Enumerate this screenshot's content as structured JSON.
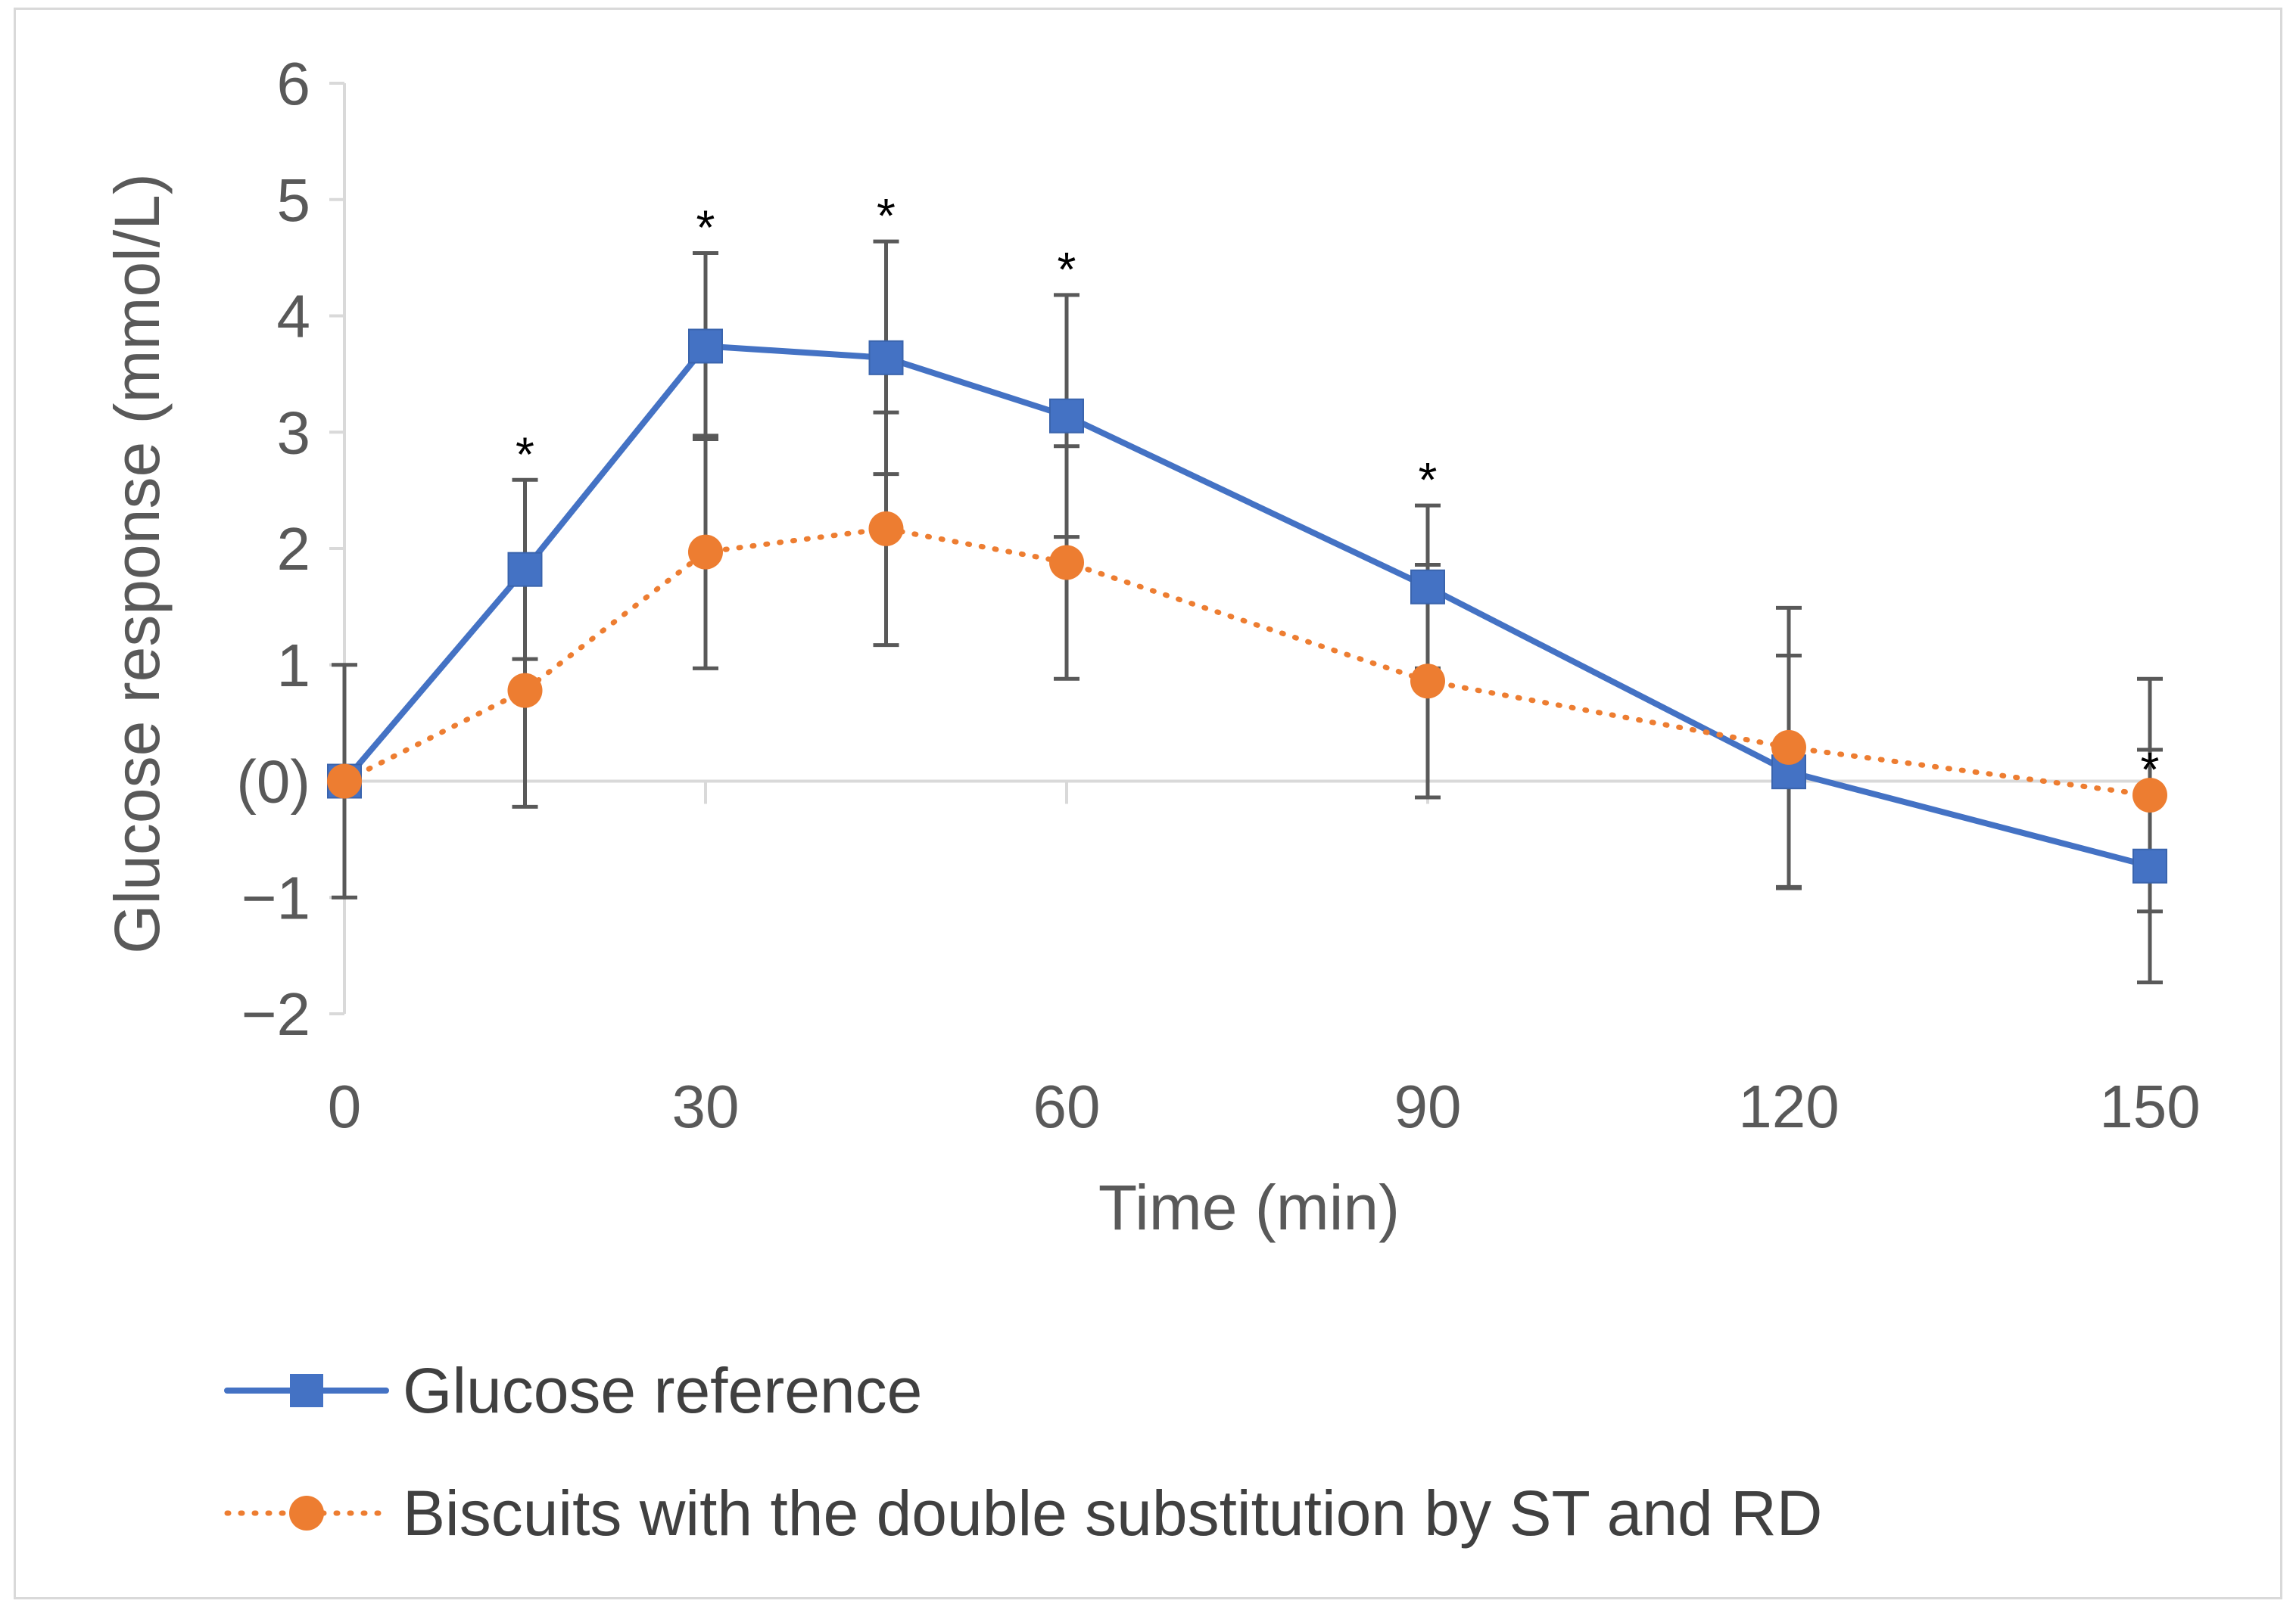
{
  "chart_data": {
    "type": "line",
    "title": "",
    "xlabel": "Time (min)",
    "ylabel": "Glucose response (mmol/L)",
    "xlim": [
      0,
      150
    ],
    "ylim": [
      -2,
      6
    ],
    "x_ticks": [
      {
        "value": 0,
        "label": "0"
      },
      {
        "value": 30,
        "label": "30"
      },
      {
        "value": 60,
        "label": "60"
      },
      {
        "value": 90,
        "label": "90"
      },
      {
        "value": 120,
        "label": "120"
      },
      {
        "value": 150,
        "label": "150"
      }
    ],
    "y_ticks": [
      {
        "value": 6,
        "label": "6"
      },
      {
        "value": 5,
        "label": "5"
      },
      {
        "value": 4,
        "label": "4"
      },
      {
        "value": 3,
        "label": "3"
      },
      {
        "value": 2,
        "label": "2"
      },
      {
        "value": 1,
        "label": "1"
      },
      {
        "value": 0,
        "label": "(0)"
      },
      {
        "value": -1,
        "label": "−1"
      },
      {
        "value": -2,
        "label": "−2"
      }
    ],
    "series": [
      {
        "name": "Glucose reference",
        "color": "#4472C4",
        "marker": "square",
        "line_style": "solid",
        "x": [
          0,
          15,
          30,
          45,
          60,
          90,
          120,
          150
        ],
        "y": [
          0,
          1.82,
          3.74,
          3.64,
          3.14,
          1.67,
          0.08,
          -0.73
        ],
        "error": [
          0,
          0.77,
          0.8,
          1.0,
          1.04,
          0.7,
          1.0,
          1.0
        ]
      },
      {
        "name": "Biscuits with the double substitution by ST and RD",
        "color": "#ED7D31",
        "marker": "circle",
        "line_style": "dotted",
        "x": [
          0,
          15,
          30,
          45,
          60,
          90,
          120,
          150
        ],
        "y": [
          0,
          0.78,
          1.97,
          2.17,
          1.88,
          0.86,
          0.29,
          -0.12
        ],
        "error": [
          1.0,
          1.0,
          1.0,
          1.0,
          1.0,
          1.0,
          1.2,
          1.0
        ]
      }
    ],
    "annotations": [
      {
        "x": 15,
        "text": "*",
        "above_value": 2.59
      },
      {
        "x": 30,
        "text": "*",
        "above_value": 4.54
      },
      {
        "x": 45,
        "text": "*",
        "above_value": 4.64
      },
      {
        "x": 60,
        "text": "*",
        "above_value": 4.18
      },
      {
        "x": 90,
        "text": "*",
        "above_value": 2.37
      },
      {
        "x": 150,
        "text": "*",
        "above_value": -0.12
      }
    ],
    "legend": {
      "placement": "bottom"
    },
    "grid": false
  }
}
